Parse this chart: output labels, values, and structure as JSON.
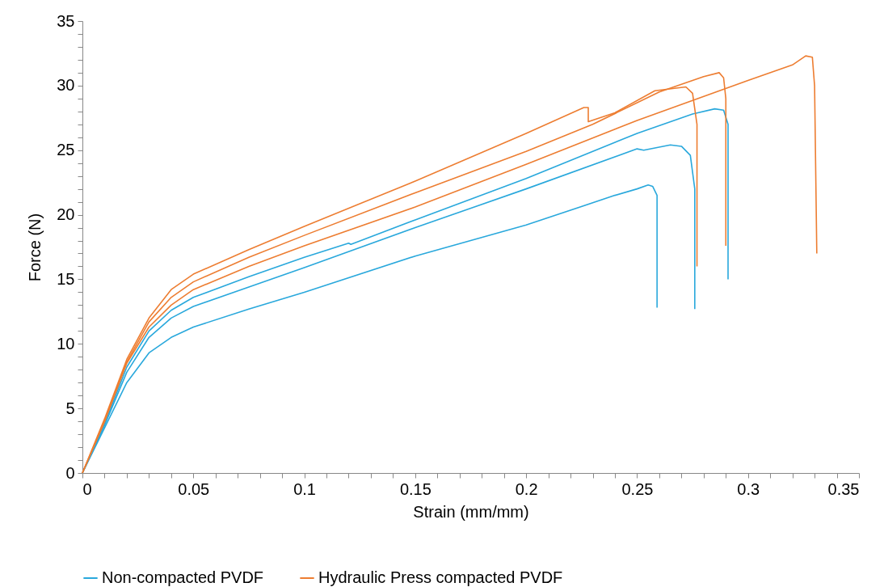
{
  "chart_data": {
    "type": "line",
    "xlabel": "Strain (mm/mm)",
    "ylabel": "Force (N)",
    "legend": "bottom",
    "grid": false,
    "marker": "none",
    "line_style": "solid",
    "xlim": [
      0,
      0.35
    ],
    "ylim": [
      0,
      35
    ],
    "xticks": [
      0,
      {
        "value": 0.01,
        "label": null
      },
      {
        "value": 0.02,
        "label": null
      },
      {
        "value": 0.03,
        "label": null
      },
      {
        "value": 0.04,
        "label": null
      },
      0.05,
      {
        "value": 0.06,
        "label": null
      },
      {
        "value": 0.07,
        "label": null
      },
      {
        "value": 0.08,
        "label": null
      },
      {
        "value": 0.09,
        "label": null
      },
      0.1,
      {
        "value": 0.11,
        "label": null
      },
      {
        "value": 0.12,
        "label": null
      },
      {
        "value": 0.13,
        "label": null
      },
      {
        "value": 0.14,
        "label": null
      },
      0.15,
      {
        "value": 0.16,
        "label": null
      },
      {
        "value": 0.17,
        "label": null
      },
      {
        "value": 0.18,
        "label": null
      },
      {
        "value": 0.19,
        "label": null
      },
      0.2,
      {
        "value": 0.21,
        "label": null
      },
      {
        "value": 0.22,
        "label": null
      },
      {
        "value": 0.23,
        "label": null
      },
      {
        "value": 0.24,
        "label": null
      },
      0.25,
      {
        "value": 0.26,
        "label": null
      },
      {
        "value": 0.27,
        "label": null
      },
      {
        "value": 0.28,
        "label": null
      },
      {
        "value": 0.29,
        "label": null
      },
      0.3,
      {
        "value": 0.31,
        "label": null
      },
      {
        "value": 0.32,
        "label": null
      },
      {
        "value": 0.33,
        "label": null
      },
      {
        "value": 0.34,
        "label": null
      },
      0.35
    ],
    "yticks": [
      0,
      {
        "value": 1,
        "label": null
      },
      {
        "value": 2,
        "label": null
      },
      {
        "value": 3,
        "label": null
      },
      {
        "value": 4,
        "label": null
      },
      5,
      {
        "value": 6,
        "label": null
      },
      {
        "value": 7,
        "label": null
      },
      {
        "value": 8,
        "label": null
      },
      {
        "value": 9,
        "label": null
      },
      10,
      {
        "value": 11,
        "label": null
      },
      {
        "value": 12,
        "label": null
      },
      {
        "value": 13,
        "label": null
      },
      {
        "value": 14,
        "label": null
      },
      15,
      {
        "value": 16,
        "label": null
      },
      {
        "value": 17,
        "label": null
      },
      {
        "value": 18,
        "label": null
      },
      {
        "value": 19,
        "label": null
      },
      20,
      {
        "value": 21,
        "label": null
      },
      {
        "value": 22,
        "label": null
      },
      {
        "value": 23,
        "label": null
      },
      {
        "value": 24,
        "label": null
      },
      25,
      {
        "value": 26,
        "label": null
      },
      {
        "value": 27,
        "label": null
      },
      {
        "value": 28,
        "label": null
      },
      {
        "value": 29,
        "label": null
      },
      30,
      {
        "value": 31,
        "label": null
      },
      {
        "value": 32,
        "label": null
      },
      {
        "value": 33,
        "label": null
      },
      {
        "value": 34,
        "label": null
      },
      35
    ],
    "series": [
      {
        "name": "Non-compacted PVDF",
        "color": "#29a8dc",
        "x": [
          0,
          0.01,
          0.02,
          0.03,
          0.04,
          0.05,
          0.075,
          0.1,
          0.15,
          0.2,
          0.24,
          0.25,
          0.255,
          0.257,
          0.259,
          0.259
        ],
        "values": [
          0,
          3.5,
          7,
          9.3,
          10.5,
          11.3,
          12.7,
          14,
          16.8,
          19.2,
          21.5,
          22,
          22.3,
          22.2,
          21.5,
          12.8
        ]
      },
      {
        "color": "#29a8dc",
        "x": [
          0,
          0.01,
          0.02,
          0.03,
          0.04,
          0.05,
          0.075,
          0.1,
          0.15,
          0.2,
          0.25,
          0.253,
          0.265,
          0.27,
          0.274,
          0.276,
          0.276
        ],
        "values": [
          0,
          3.7,
          7.8,
          10.5,
          12,
          12.9,
          14.4,
          15.9,
          19,
          22,
          25.1,
          25,
          25.4,
          25.3,
          24.6,
          22,
          12.7
        ]
      },
      {
        "color": "#29a8dc",
        "x": [
          0,
          0.01,
          0.02,
          0.03,
          0.04,
          0.05,
          0.075,
          0.1,
          0.12,
          0.121,
          0.15,
          0.2,
          0.25,
          0.275,
          0.285,
          0.289,
          0.291,
          0.291
        ],
        "values": [
          0,
          3.8,
          8.2,
          11,
          12.6,
          13.6,
          15.2,
          16.7,
          17.8,
          17.7,
          19.6,
          22.8,
          26.3,
          27.8,
          28.2,
          28.1,
          27,
          15
        ]
      },
      {
        "name": "Hydraulic Press compacted PVDF",
        "color": "#ed7d31",
        "x": [
          0,
          0.01,
          0.02,
          0.03,
          0.04,
          0.05,
          0.075,
          0.1,
          0.15,
          0.2,
          0.226,
          0.228,
          0.228,
          0.24,
          0.258,
          0.272,
          0.275,
          0.277,
          0.277
        ],
        "values": [
          0,
          4.2,
          8.8,
          12,
          14.2,
          15.4,
          17.3,
          19.1,
          22.6,
          26.3,
          28.3,
          28.3,
          27.2,
          27.9,
          29.6,
          29.9,
          29.4,
          27,
          16
        ]
      },
      {
        "color": "#ed7d31",
        "x": [
          0,
          0.01,
          0.02,
          0.03,
          0.04,
          0.05,
          0.075,
          0.1,
          0.15,
          0.2,
          0.23,
          0.26,
          0.28,
          0.287,
          0.289,
          0.29,
          0.29
        ],
        "values": [
          0,
          4,
          8.6,
          11.7,
          13.6,
          14.8,
          16.7,
          18.4,
          21.7,
          24.9,
          27,
          29.5,
          30.7,
          31,
          30.6,
          29,
          17.6
        ]
      },
      {
        "color": "#ed7d31",
        "x": [
          0,
          0.01,
          0.02,
          0.03,
          0.04,
          0.05,
          0.075,
          0.1,
          0.15,
          0.2,
          0.25,
          0.3,
          0.32,
          0.326,
          0.329,
          0.33,
          0.331
        ],
        "values": [
          0,
          4,
          8.5,
          11.3,
          13,
          14.2,
          16,
          17.6,
          20.6,
          23.9,
          27.3,
          30.4,
          31.6,
          32.3,
          32.2,
          30,
          17
        ]
      }
    ]
  }
}
